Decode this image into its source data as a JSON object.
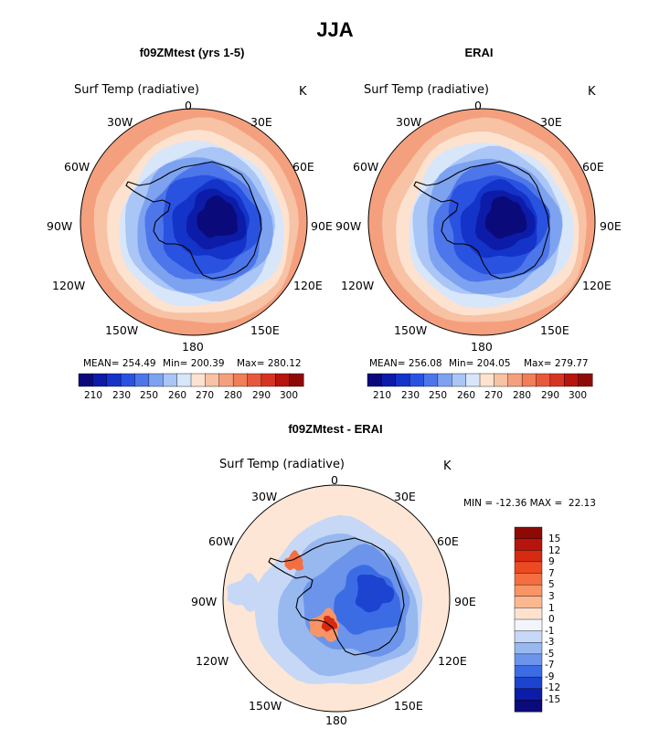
{
  "title": "JJA",
  "panels": [
    {
      "subtitle": "f09ZMtest (yrs 1-5)",
      "variable": "Surf Temp (radiative)",
      "units": "K",
      "mean_label": "MEAN= 254.49",
      "min_label": "Min= 200.39",
      "max_label": "Max= 280.12",
      "lon_labels": [
        "0",
        "30E",
        "60E",
        "90E",
        "120E",
        "150E",
        "180",
        "150W",
        "120W",
        "90W",
        "60W",
        "30W"
      ]
    },
    {
      "subtitle": "ERAI",
      "variable": "Surf Temp (radiative)",
      "units": "K",
      "mean_label": "MEAN= 256.08",
      "min_label": "Min= 204.05",
      "max_label": "Max= 279.77",
      "lon_labels": [
        "0",
        "30E",
        "60E",
        "90E",
        "120E",
        "150E",
        "180",
        "150W",
        "120W",
        "90W",
        "60W",
        "30W"
      ]
    }
  ],
  "diff_panel": {
    "subtitle": "f09ZMtest - ERAI",
    "variable": "Surf Temp (radiative)",
    "units": "K",
    "minmax_label": "MIN = -12.36 MAX =  22.13",
    "lon_labels": [
      "0",
      "30E",
      "60E",
      "90E",
      "120E",
      "150E",
      "180",
      "150W",
      "120W",
      "90W",
      "60W",
      "30W"
    ]
  },
  "abs_colorbar": {
    "ticks": [
      "210",
      "230",
      "250",
      "260",
      "270",
      "280",
      "290",
      "300"
    ],
    "colors": [
      "#0a0a7a",
      "#0c1ca8",
      "#1433c8",
      "#2a52e0",
      "#4d76ea",
      "#7da2f0",
      "#aac6f6",
      "#d8e6fa",
      "#fde2d0",
      "#f8c2a4",
      "#f4a07e",
      "#f07e58",
      "#e8583a",
      "#d63422",
      "#b8140e",
      "#8e0a06"
    ]
  },
  "diff_colorbar": {
    "ticks": [
      "15",
      "12",
      "9",
      "7",
      "5",
      "3",
      "1",
      "0",
      "-1",
      "-3",
      "-5",
      "-7",
      "-9",
      "-12",
      "-15"
    ],
    "colors": [
      "#8e0a06",
      "#b8140e",
      "#d62a12",
      "#ec4a22",
      "#f46e40",
      "#f89466",
      "#fbb890",
      "#fde2d0",
      "#f2f6fc",
      "#c6d8f6",
      "#98b8f0",
      "#6c94ea",
      "#3c6ce4",
      "#1c44d0",
      "#0c1ca8",
      "#0a0a7a"
    ]
  },
  "colors": {
    "coastline": "#000000",
    "background": "#ffffff"
  }
}
